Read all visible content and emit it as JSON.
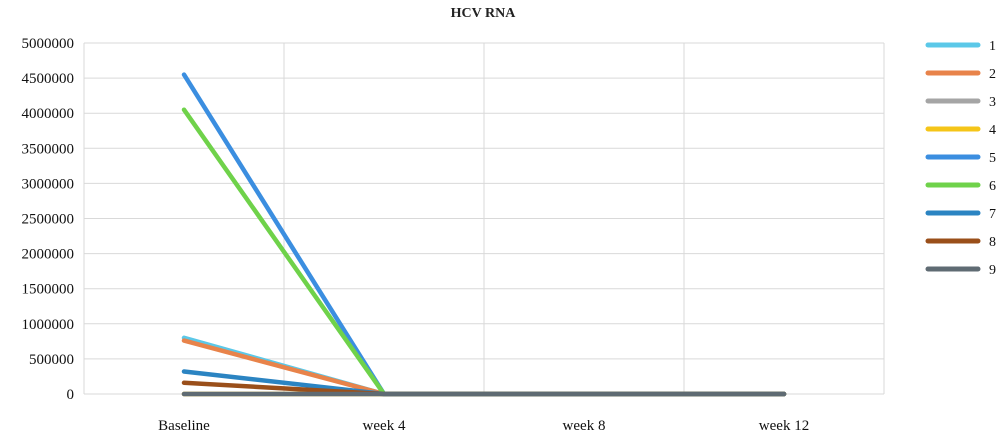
{
  "chart_data": {
    "type": "line",
    "title": "HCV RNA",
    "categories": [
      "Baseline",
      "week 4",
      "week 8",
      "week 12"
    ],
    "ylim": [
      0,
      5000000
    ],
    "yticks": [
      0,
      500000,
      1000000,
      1500000,
      2000000,
      2500000,
      3000000,
      3500000,
      4000000,
      4500000,
      5000000
    ],
    "ytick_labels": [
      "0",
      "500000",
      "1000000",
      "1500000",
      "2000000",
      "2500000",
      "3000000",
      "3500000",
      "4000000",
      "4500000",
      "5000000"
    ],
    "grid": true,
    "legend": "right",
    "series": [
      {
        "name": "1",
        "color": "#5bc8e8",
        "values": [
          800000,
          0,
          0,
          0
        ]
      },
      {
        "name": "2",
        "color": "#e8834a",
        "values": [
          760000,
          0,
          0,
          0
        ]
      },
      {
        "name": "3",
        "color": "#a5a5a5",
        "values": [
          0,
          0,
          0,
          0
        ]
      },
      {
        "name": "4",
        "color": "#f5c518",
        "values": [
          0,
          0,
          0,
          0
        ]
      },
      {
        "name": "5",
        "color": "#3b8ee0",
        "values": [
          4550000,
          0,
          0,
          0
        ]
      },
      {
        "name": "6",
        "color": "#6fd24a",
        "values": [
          4050000,
          0,
          0,
          0
        ]
      },
      {
        "name": "7",
        "color": "#2b84c2",
        "values": [
          320000,
          0,
          0,
          0
        ]
      },
      {
        "name": "8",
        "color": "#9a4f1a",
        "values": [
          160000,
          0,
          0,
          0
        ]
      },
      {
        "name": "9",
        "color": "#5f6b73",
        "values": [
          0,
          0,
          0,
          0
        ]
      }
    ]
  }
}
